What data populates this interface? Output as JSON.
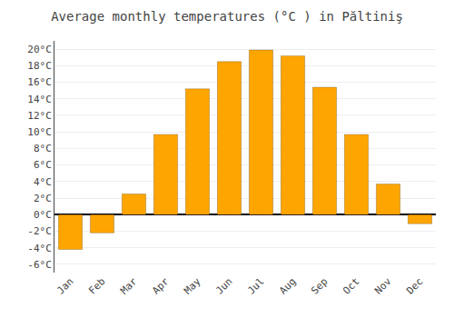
{
  "chart_data": {
    "type": "bar",
    "title": "Average monthly temperatures (°C ) in Păltiniş",
    "categories": [
      "Jan",
      "Feb",
      "Mar",
      "Apr",
      "May",
      "Jun",
      "Jul",
      "Aug",
      "Sep",
      "Oct",
      "Nov",
      "Dec"
    ],
    "values": [
      -4.2,
      -2.2,
      2.5,
      9.7,
      15.2,
      18.5,
      19.9,
      19.2,
      15.4,
      9.7,
      3.7,
      -1.1
    ],
    "color": "#FFA500",
    "ylim": [
      -7,
      21
    ],
    "yticks": [
      {
        "value": -6,
        "label": "-6°C"
      },
      {
        "value": -4,
        "label": "-4°C"
      },
      {
        "value": -2,
        "label": "-2°C"
      },
      {
        "value": 0,
        "label": "0°C"
      },
      {
        "value": 2,
        "label": "2°C"
      },
      {
        "value": 4,
        "label": "4°C"
      },
      {
        "value": 6,
        "label": "6°C"
      },
      {
        "value": 8,
        "label": "8°C"
      },
      {
        "value": 10,
        "label": "10°C"
      },
      {
        "value": 12,
        "label": "12°C"
      },
      {
        "value": 14,
        "label": "14°C"
      },
      {
        "value": 16,
        "label": "16°C"
      },
      {
        "value": 18,
        "label": "18°C"
      },
      {
        "value": 20,
        "label": "20°C"
      }
    ],
    "grid": true
  }
}
